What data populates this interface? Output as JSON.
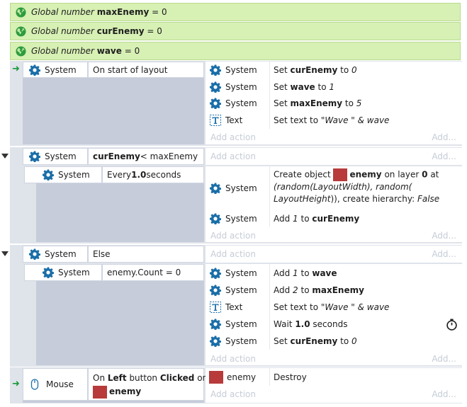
{
  "globals": [
    {
      "prefix": "Global number ",
      "name": "maxEnemy",
      "suffix": " = 0"
    },
    {
      "prefix": "Global number ",
      "name": "curEnemy",
      "suffix": " = 0"
    },
    {
      "prefix": "Global number ",
      "name": "wave",
      "suffix": " = 0"
    }
  ],
  "event1": {
    "object": "System",
    "condition": "On start of layout",
    "actions": [
      {
        "object": "System",
        "pre": "Set ",
        "bold": "curEnemy",
        "mid": " to ",
        "italic": "0",
        "post": ""
      },
      {
        "object": "System",
        "pre": "Set ",
        "bold": "wave",
        "mid": " to ",
        "italic": "1",
        "post": ""
      },
      {
        "object": "System",
        "pre": "Set ",
        "bold": "maxEnemy",
        "mid": " to ",
        "italic": "5",
        "post": ""
      },
      {
        "object": "Text",
        "pre": "Set text to ",
        "bold": "",
        "mid": "",
        "italic": "\"Wave \" & wave",
        "post": ""
      }
    ],
    "add_action": "Add action",
    "add_short": "Add..."
  },
  "event2": {
    "object": "System",
    "cond_bold": "curEnemy",
    "cond_rest": " < maxEnemy",
    "add_action": "Add action",
    "add_short": "Add...",
    "sub": {
      "object": "System",
      "cond_pre": "Every ",
      "cond_bold": "1.0",
      "cond_post": " seconds",
      "create": {
        "object": "System",
        "line1_pre": "Create object ",
        "line1_obj": "enemy",
        "line1_mid": " on layer ",
        "line1_layer": "0",
        "line1_post": " at",
        "line2": "(random(LayoutWidth), random(",
        "line3_italic": "LayoutHeight",
        "line3_rest": ")), create hierarchy: ",
        "line3_false": "False"
      },
      "add": {
        "object": "System",
        "pre": "Add ",
        "italic": "1",
        "mid": " to ",
        "bold": "curEnemy"
      },
      "add_action": "Add action",
      "add_short": "Add..."
    }
  },
  "event3": {
    "object": "System",
    "condition": "Else",
    "add_action": "Add action",
    "add_short": "Add...",
    "sub": {
      "object": "System",
      "condition": "enemy.Count = 0",
      "actions": [
        {
          "object": "System",
          "pre": "Add ",
          "italic": "1",
          "mid": " to ",
          "bold": "wave",
          "tail": ""
        },
        {
          "object": "System",
          "pre": "Add ",
          "italic": "2",
          "mid": " to ",
          "bold": "maxEnemy",
          "tail": ""
        },
        {
          "object": "Text",
          "pre": "Set text to ",
          "italic": "\"Wave \" & wave",
          "mid": "",
          "bold": "",
          "tail": ""
        },
        {
          "object": "System",
          "pre": "Wait ",
          "italic": "",
          "mid": "",
          "bold": "1.0",
          "tail": " seconds"
        },
        {
          "object": "System",
          "pre": "Set ",
          "italic": "0",
          "mid": " to ",
          "bold": "curEnemy",
          "tail": ""
        }
      ],
      "add_action": "Add action",
      "add_short": "Add..."
    }
  },
  "event4": {
    "object": "Mouse",
    "cond_pre": "On ",
    "cond_b1": "Left",
    "cond_mid": " button ",
    "cond_b2": "Clicked",
    "cond_post": " on",
    "cond_obj": "enemy",
    "action_object": "enemy",
    "action": "Destroy",
    "add_action": "Add action",
    "add_short": "Add..."
  },
  "colors": {
    "global_bg": "#d7f0b4",
    "band": "#dfe3ea",
    "sidebar": "#c6ccda",
    "gear": "#1a6ea8",
    "sprite": "#b83a3a",
    "arrow": "#1a9a3a"
  }
}
